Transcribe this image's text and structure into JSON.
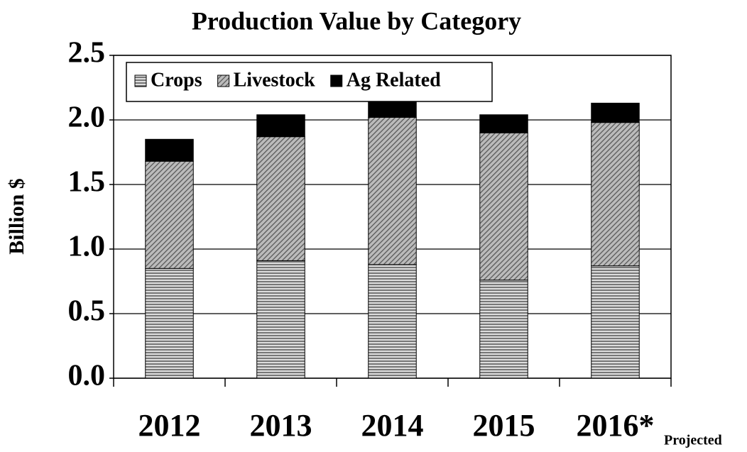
{
  "chart_data": {
    "type": "stacked_bar",
    "title": "Production Value by Category",
    "ylabel": "Billion $",
    "annotation": "Projected",
    "categories": [
      "2012",
      "2013",
      "2014",
      "2015",
      "2016*"
    ],
    "series": [
      {
        "name": "Crops",
        "color": "#555555",
        "pattern": "horizontal",
        "values": [
          0.85,
          0.91,
          0.88,
          0.76,
          0.87
        ]
      },
      {
        "name": "Livestock",
        "color": "#555555",
        "pattern": "diagonal",
        "values": [
          0.83,
          0.96,
          1.14,
          1.14,
          1.11
        ]
      },
      {
        "name": "Ag Related",
        "color": "#000000",
        "pattern": "solid",
        "values": [
          0.17,
          0.17,
          0.18,
          0.14,
          0.15
        ]
      }
    ],
    "ylim": [
      0,
      2.5
    ],
    "yticks": [
      {
        "value": 0,
        "label": "0.0"
      },
      0.5,
      {
        "value": 1,
        "label": "1.0"
      },
      1.5,
      {
        "value": 2,
        "label": "2.0"
      },
      2.5
    ],
    "grid": true,
    "legend": "top-left"
  }
}
